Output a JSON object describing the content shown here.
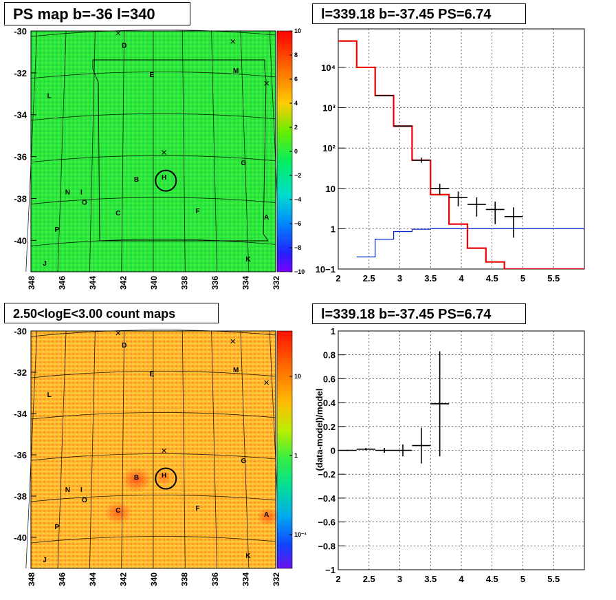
{
  "panels": {
    "ps_map": {
      "title": "PS map b=-36 l=340",
      "ytick_labels": [
        "-30",
        "-32",
        "-34",
        "-36",
        "-38",
        "-40"
      ],
      "xtick_labels": [
        "348",
        "346",
        "344",
        "342",
        "340",
        "338",
        "336",
        "334",
        "332"
      ],
      "colorbar_labels": [
        "10",
        "8",
        "6",
        "4",
        "2",
        "0",
        "−2",
        "−4",
        "−6",
        "−8",
        "−10"
      ]
    },
    "spectrum": {
      "title": "l=339.18 b=-37.45 PS=6.74",
      "xtick_labels": [
        "2",
        "2.5",
        "3",
        "3.5",
        "4",
        "4.5",
        "5",
        "5.5"
      ],
      "ytick_labels": [
        "10−1",
        "1",
        "10",
        "10²",
        "10³",
        "10⁴"
      ]
    },
    "count_map": {
      "title": "2.50<logE<3.00 count maps",
      "ytick_labels": [
        "-30",
        "-32",
        "-34",
        "-36",
        "-38",
        "-40"
      ],
      "xtick_labels": [
        "348",
        "346",
        "344",
        "342",
        "340",
        "338",
        "336",
        "334",
        "332"
      ],
      "colorbar_labels": [
        "10",
        "1",
        "10⁻¹"
      ]
    },
    "residual": {
      "title": "l=339.18 b=-37.45 PS=6.74",
      "ylabel": "(data-model)/model",
      "xtick_labels": [
        "2",
        "2.5",
        "3",
        "3.5",
        "4",
        "4.5",
        "5",
        "5.5"
      ],
      "ytick_labels": [
        "−1",
        "−0.8",
        "−0.6",
        "−0.4",
        "−0.2",
        "0",
        "0.2",
        "0.4",
        "0.6",
        "0.8",
        "1"
      ]
    }
  },
  "source_labels": [
    "D",
    "E",
    "M",
    "L",
    "G",
    "H",
    "B",
    "N",
    "I",
    "O",
    "C",
    "F",
    "A",
    "P",
    "J",
    "K"
  ],
  "colors": {
    "ps_map_background": "#33ee33",
    "count_map_background": "#ffb030",
    "model_line": "#ee0000",
    "background_model_line": "#0022cc",
    "data_points": "#000000"
  },
  "chart_data": [
    {
      "type": "heatmap",
      "title": "PS map b=-36 l=340",
      "xlim": [
        348,
        332
      ],
      "ylim": [
        -41.5,
        -30
      ],
      "colorbar_range": [
        -10,
        10
      ],
      "sources": [
        {
          "label": "D",
          "l": 341.9,
          "b": -30.8
        },
        {
          "label": "E",
          "l": 340.1,
          "b": -32.2
        },
        {
          "label": "M",
          "l": 334.6,
          "b": -32.0
        },
        {
          "label": "L",
          "l": 346.8,
          "b": -33.2
        },
        {
          "label": "G",
          "l": 334.1,
          "b": -36.4
        },
        {
          "label": "H",
          "l": 339.3,
          "b": -37.1
        },
        {
          "label": "B",
          "l": 341.1,
          "b": -37.2
        },
        {
          "label": "N",
          "l": 345.6,
          "b": -37.8
        },
        {
          "label": "I",
          "l": 344.7,
          "b": -37.8
        },
        {
          "label": "O",
          "l": 344.5,
          "b": -38.3
        },
        {
          "label": "C",
          "l": 342.3,
          "b": -38.8
        },
        {
          "label": "F",
          "l": 337.1,
          "b": -38.7
        },
        {
          "label": "A",
          "l": 332.6,
          "b": -39.0
        },
        {
          "label": "P",
          "l": 346.3,
          "b": -39.6
        },
        {
          "label": "J",
          "l": 347.1,
          "b": -41.2
        },
        {
          "label": "K",
          "l": 333.8,
          "b": -41.0
        }
      ]
    },
    {
      "type": "line",
      "title": "l=339.18 b=-37.45 PS=6.74",
      "xlim": [
        2,
        6
      ],
      "ylim": [
        0.1,
        90000
      ],
      "yscale": "log",
      "grid": true,
      "model_steps": {
        "edges": [
          2.0,
          2.3,
          2.6,
          2.9,
          3.2,
          3.5,
          3.8,
          4.1,
          4.4,
          4.7,
          6.0
        ],
        "values": [
          45000,
          10000,
          2000,
          350,
          50,
          7,
          1.3,
          0.33,
          0.15,
          0.1
        ]
      },
      "background_steps": {
        "edges": [
          2.3,
          2.6,
          2.9,
          3.2,
          3.5,
          6.0
        ],
        "values": [
          0.2,
          0.55,
          0.85,
          0.97,
          1.0
        ]
      },
      "data_points": [
        {
          "x": 2.75,
          "y": 2000,
          "xerr": 0.15,
          "ylo": 2000,
          "yhi": 2000
        },
        {
          "x": 3.05,
          "y": 350,
          "xerr": 0.15,
          "ylo": 350,
          "yhi": 350
        },
        {
          "x": 3.35,
          "y": 50,
          "xerr": 0.15,
          "ylo": 43,
          "yhi": 58
        },
        {
          "x": 3.65,
          "y": 10,
          "xerr": 0.15,
          "ylo": 7,
          "yhi": 13
        },
        {
          "x": 3.95,
          "y": 6,
          "xerr": 0.15,
          "ylo": 3.6,
          "yhi": 8.4
        },
        {
          "x": 4.25,
          "y": 4,
          "xerr": 0.15,
          "ylo": 2,
          "yhi": 6
        },
        {
          "x": 4.55,
          "y": 3,
          "xerr": 0.15,
          "ylo": 1.3,
          "yhi": 4.7
        },
        {
          "x": 4.85,
          "y": 2,
          "xerr": 0.15,
          "ylo": 0.6,
          "yhi": 3.4
        }
      ]
    },
    {
      "type": "heatmap",
      "title": "2.50<logE<3.00 count maps",
      "xlim": [
        348,
        332
      ],
      "ylim": [
        -41.5,
        -30
      ],
      "colorbar_scale": "log",
      "colorbar_range": [
        0.05,
        50
      ]
    },
    {
      "type": "scatter",
      "title": "l=339.18 b=-37.45 PS=6.74",
      "ylabel": "(data-model)/model",
      "xlim": [
        2,
        6
      ],
      "ylim": [
        -1,
        1
      ],
      "grid": true,
      "points": [
        {
          "x": 2.15,
          "y": 0.0,
          "xerr": 0.15,
          "yerr": 0.005
        },
        {
          "x": 2.45,
          "y": 0.01,
          "xerr": 0.15,
          "yerr": 0.01
        },
        {
          "x": 2.75,
          "y": 0.0,
          "xerr": 0.15,
          "yerr": 0.02
        },
        {
          "x": 3.05,
          "y": 0.0,
          "xerr": 0.15,
          "yerr": 0.05
        },
        {
          "x": 3.35,
          "y": 0.04,
          "xerr": 0.15,
          "yerr": 0.15
        },
        {
          "x": 3.65,
          "y": 0.39,
          "xerr": 0.15,
          "yerr": 0.44
        }
      ]
    }
  ]
}
